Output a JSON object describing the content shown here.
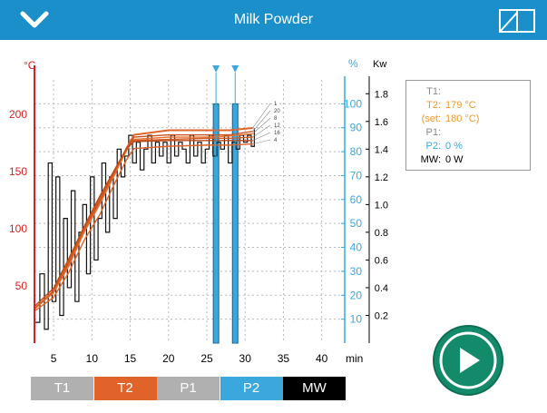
{
  "app": {
    "title": "Milk Powder"
  },
  "icons": {
    "back": "chevron-down-icon",
    "book": "book-icon",
    "play": "play-icon"
  },
  "colors": {
    "header": "#1a8fc9",
    "t1": "#b0b0b0",
    "t2": "#e0642a",
    "p1": "#b0b0b0",
    "p2": "#3aa7dd",
    "mw": "#000000",
    "play": "#138a6a"
  },
  "axes": {
    "temp_unit": "°C",
    "temp_ticks": [
      "200",
      "150",
      "100",
      "50"
    ],
    "pct_unit": "%",
    "pct_ticks": [
      "100",
      "90",
      "80",
      "70",
      "60",
      "50",
      "40",
      "30",
      "20",
      "10"
    ],
    "kw_unit": "Kw",
    "kw_ticks": [
      "1.8",
      "1.6",
      "1.4",
      "1.2",
      "1.0",
      "0.8",
      "0.6",
      "0.4",
      "0.2"
    ],
    "x_ticks": [
      "5",
      "10",
      "15",
      "20",
      "25",
      "30",
      "35",
      "40"
    ],
    "x_unit": "min"
  },
  "chart_data": {
    "type": "line",
    "x_unit": "min",
    "xlim": [
      2.5,
      43
    ],
    "temp_ylim": [
      0,
      230
    ],
    "pct_ylim": [
      0,
      110
    ],
    "kw_ylim": [
      0,
      1.9
    ],
    "series_labels": [
      "1",
      "20",
      "8",
      "12",
      "16",
      "4"
    ],
    "t2_curves": [
      {
        "x": [
          2.5,
          5,
          7,
          9,
          11,
          13,
          14.5,
          15.5,
          20,
          25,
          28,
          31
        ],
        "y": [
          30,
          45,
          68,
          98,
          122,
          148,
          170,
          182,
          186,
          186,
          186,
          188
        ]
      },
      {
        "x": [
          2.5,
          5,
          7,
          9,
          11,
          13,
          14.5,
          15.5,
          20,
          25,
          28,
          31
        ],
        "y": [
          30,
          45,
          70,
          100,
          124,
          150,
          170,
          180,
          182,
          182,
          182,
          185
        ]
      },
      {
        "x": [
          2.5,
          5,
          7,
          9,
          11,
          13,
          14.5,
          15.5,
          20,
          25,
          28,
          31
        ],
        "y": [
          30,
          44,
          68,
          97,
          121,
          148,
          168,
          178,
          180,
          180,
          181,
          183
        ]
      },
      {
        "x": [
          2.5,
          5,
          7,
          9,
          11,
          13,
          14.5,
          15.5,
          20,
          25,
          28,
          31
        ],
        "y": [
          30,
          46,
          72,
          100,
          126,
          150,
          170,
          177,
          178,
          179,
          179,
          180
        ]
      },
      {
        "x": [
          2.5,
          5,
          7,
          9,
          11,
          13,
          14.5,
          15.5,
          20,
          25,
          28,
          31
        ],
        "y": [
          32,
          48,
          74,
          102,
          128,
          152,
          170,
          176,
          177,
          177,
          177,
          177
        ]
      },
      {
        "x": [
          2.5,
          5,
          7,
          9,
          11,
          13,
          14.5,
          15.5,
          20,
          25,
          28,
          31
        ],
        "y": [
          28,
          40,
          62,
          90,
          112,
          140,
          160,
          170,
          172,
          173,
          173,
          174
        ]
      }
    ],
    "mw_trace": {
      "x": [
        2.5,
        3.2,
        3.8,
        4.3,
        4.8,
        5.3,
        5.8,
        6.3,
        6.8,
        7.3,
        7.8,
        8.3,
        8.8,
        9.3,
        9.8,
        10.3,
        10.8,
        11.3,
        11.8,
        12.3,
        12.8,
        13.3,
        13.8,
        14.3,
        14.8,
        15.3,
        15.8,
        16.3,
        16.8,
        17.3,
        17.8,
        18.3,
        18.8,
        19.3,
        19.8,
        20.3,
        20.8,
        21.3,
        21.8,
        22.3,
        22.8,
        23.3,
        23.8,
        24.3,
        24.8,
        25.3,
        25.8,
        26.3,
        26.8,
        27.3,
        27.8,
        28.3,
        28.8,
        29.3,
        29.8,
        30.3,
        30.8,
        31.2
      ],
      "y": [
        0.15,
        0.5,
        0.1,
        1.3,
        0.3,
        1.2,
        0.2,
        0.9,
        0.4,
        1.1,
        0.3,
        0.8,
        1.0,
        0.5,
        1.2,
        0.6,
        0.9,
        1.3,
        0.8,
        1.2,
        0.9,
        1.4,
        1.2,
        1.35,
        1.5,
        1.3,
        1.45,
        1.25,
        1.4,
        1.5,
        1.3,
        1.45,
        1.35,
        1.45,
        1.3,
        1.5,
        1.35,
        1.45,
        1.4,
        1.3,
        1.5,
        1.35,
        1.45,
        1.3,
        1.4,
        1.5,
        1.35,
        1.45,
        1.4,
        1.5,
        1.3,
        1.45,
        1.4,
        1.5,
        1.45,
        1.5,
        1.42,
        1.55
      ]
    },
    "p2_bars": [
      {
        "x": 26.2,
        "value": 100
      },
      {
        "x": 28.7,
        "value": 100
      }
    ]
  },
  "readout": {
    "rows": [
      {
        "label": "T1:",
        "value": "",
        "color": "#8a8a8a"
      },
      {
        "label": "T2:",
        "value": "179 °C",
        "color": "#e89a2a"
      },
      {
        "label": "(set:",
        "value": "180 °C)",
        "color": "#e89a2a"
      },
      {
        "label": "P1:",
        "value": "",
        "color": "#8a8a8a"
      },
      {
        "label": "P2:",
        "value": "0 %",
        "color": "#3aa7dd"
      },
      {
        "label": "MW:",
        "value": "0 W",
        "color": "#000000"
      }
    ]
  },
  "tabs": [
    {
      "label": "T1",
      "color": "#b0b0b0"
    },
    {
      "label": "T2",
      "color": "#e0642a"
    },
    {
      "label": "P1",
      "color": "#b0b0b0"
    },
    {
      "label": "P2",
      "color": "#3aa7dd"
    },
    {
      "label": "MW",
      "color": "#000000"
    }
  ]
}
